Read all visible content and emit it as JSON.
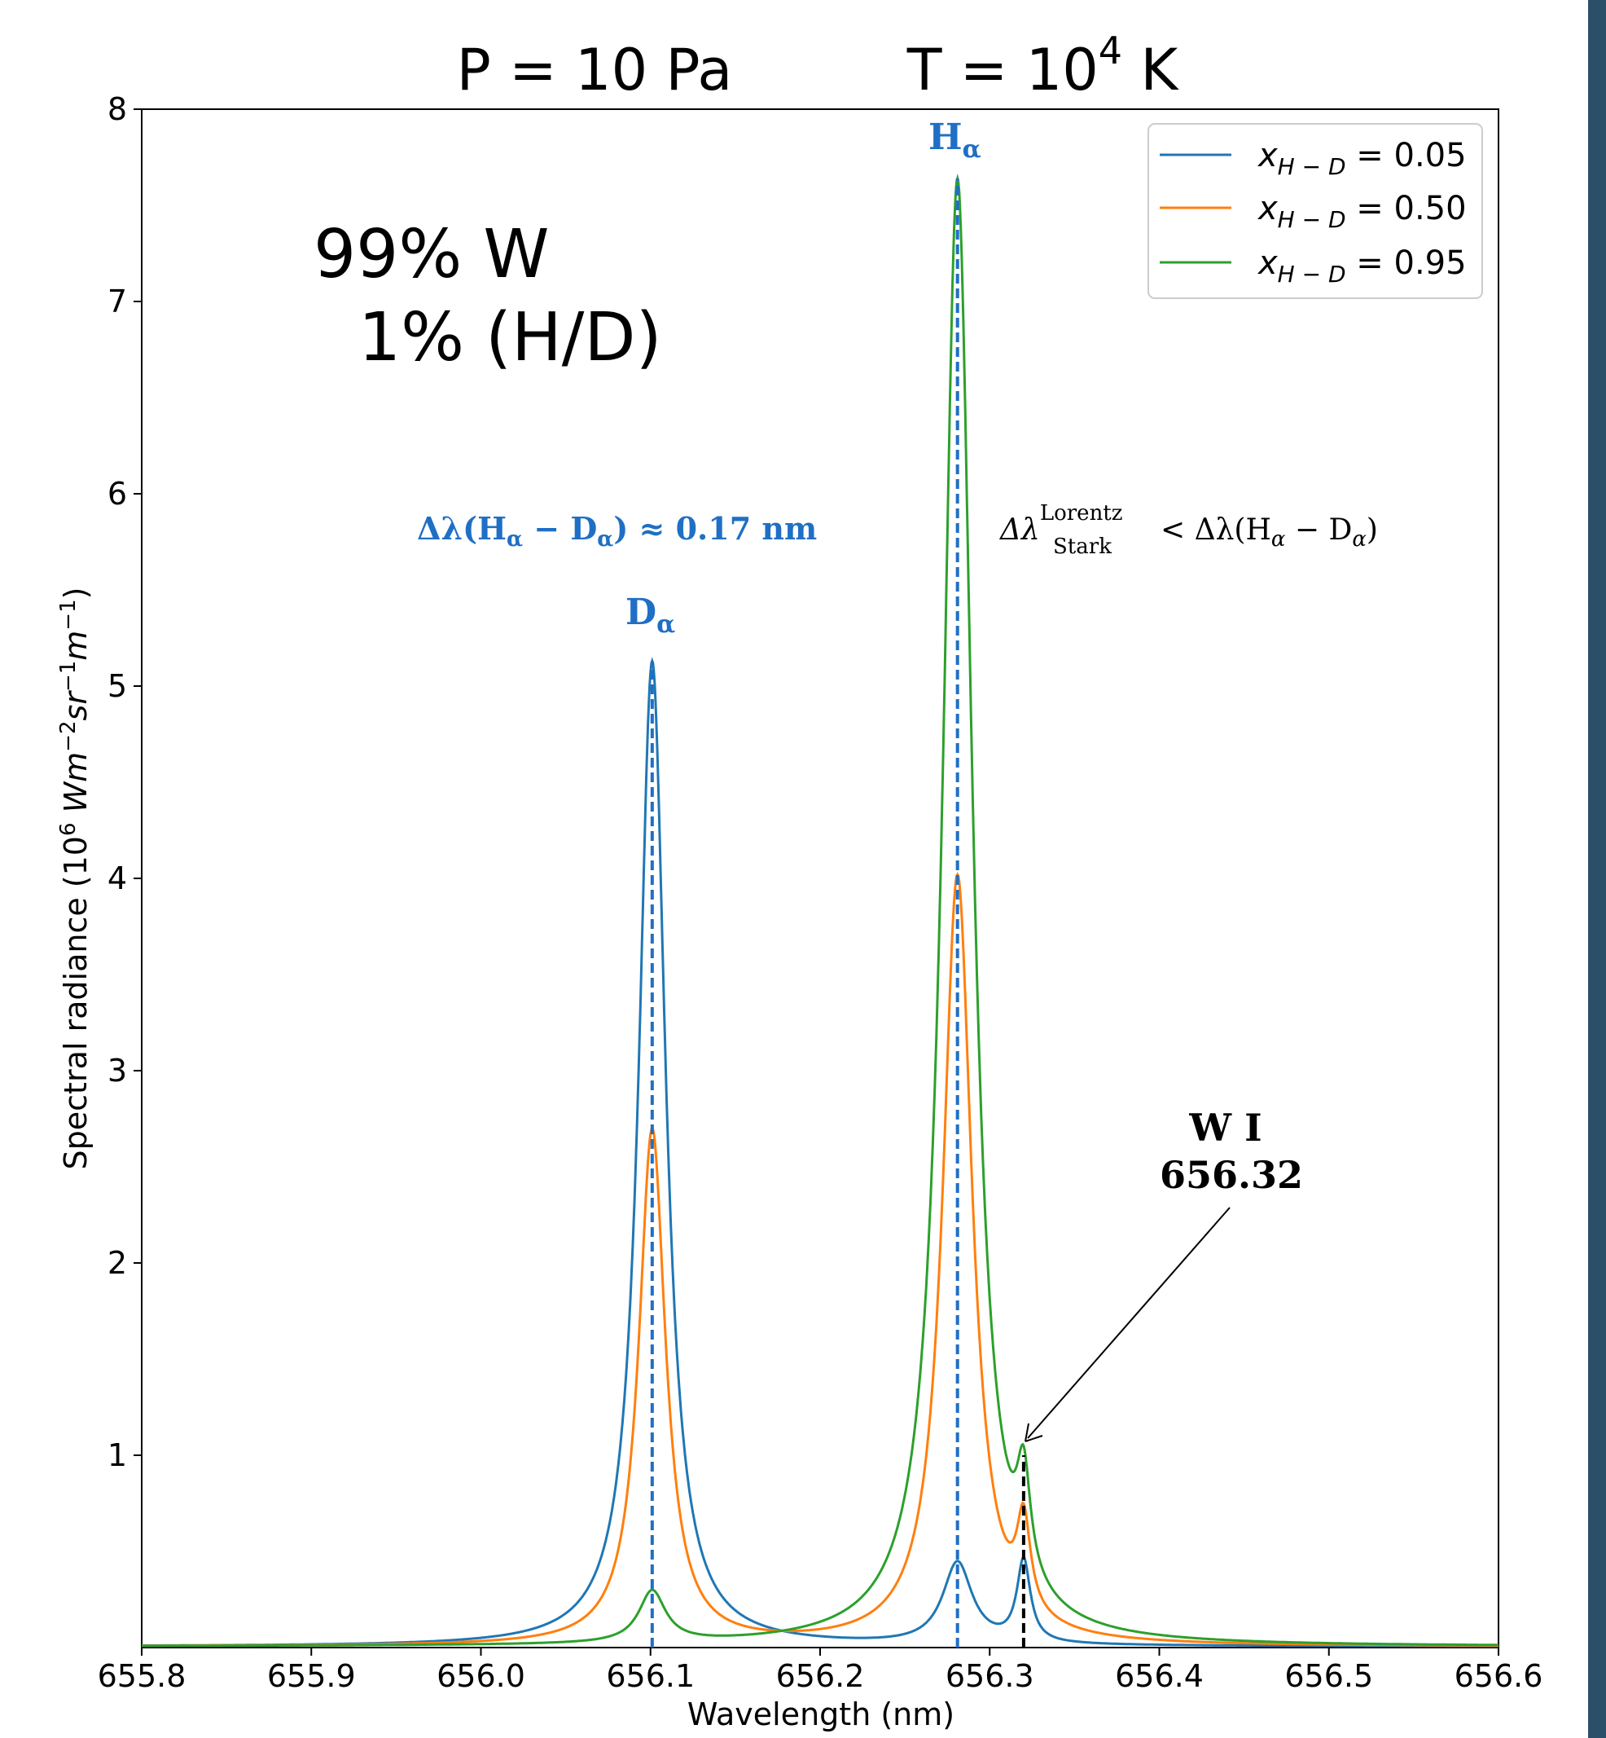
{
  "chart_data": {
    "type": "line",
    "title": {
      "pressure": "P = 10 Pa",
      "temperature_prefix": "T = 10",
      "temperature_exp": "4",
      "temperature_suffix": " K"
    },
    "xlabel": "Wavelength (nm)",
    "ylabel": {
      "prefix": "Spectral radiance (10",
      "exp6": "6",
      "w": " Wm",
      "exp2": "−2",
      "sr": "sr",
      "exp1a": "−1",
      "m": "m",
      "exp1b": "−1",
      "suffix": ")"
    },
    "xlim": [
      655.8,
      656.6
    ],
    "ylim": [
      0,
      8
    ],
    "xticks": [
      "655.8",
      "655.9",
      "656.0",
      "656.1",
      "656.2",
      "656.3",
      "656.4",
      "656.5",
      "656.6"
    ],
    "yticks": [
      "1",
      "2",
      "3",
      "4",
      "5",
      "6",
      "7",
      "8"
    ],
    "grid": false,
    "legend_position": "top-right",
    "series": [
      {
        "name": "x_{H−D} = 0.05",
        "label_var": "x",
        "label_sub": "H − D",
        "label_val": " = 0.05",
        "color": "#1f77b4",
        "peaks": [
          {
            "x": 656.101,
            "y": 5.13
          },
          {
            "x": 656.281,
            "y": 0.45
          },
          {
            "x": 656.32,
            "y": 0.47
          }
        ]
      },
      {
        "name": "x_{H−D} = 0.50",
        "label_var": "x",
        "label_sub": "H − D",
        "label_val": " = 0.50",
        "color": "#ff7f0e",
        "peaks": [
          {
            "x": 656.101,
            "y": 2.7
          },
          {
            "x": 656.281,
            "y": 4.02
          },
          {
            "x": 656.32,
            "y": 0.75
          }
        ]
      },
      {
        "name": "x_{H−D} = 0.95",
        "label_var": "x",
        "label_sub": "H − D",
        "label_val": " = 0.95",
        "color": "#2ca02c",
        "peaks": [
          {
            "x": 656.101,
            "y": 0.3
          },
          {
            "x": 656.281,
            "y": 7.64
          },
          {
            "x": 656.32,
            "y": 1.05
          }
        ]
      }
    ],
    "vlines": [
      {
        "x": 656.101,
        "y_max": 5.13,
        "color": "#1f6fc5",
        "style": "dashed"
      },
      {
        "x": 656.281,
        "y_max": 7.64,
        "color": "#1f6fc5",
        "style": "dashed"
      },
      {
        "x": 656.32,
        "y_max": 1.0,
        "color": "#000000",
        "style": "dashed"
      }
    ],
    "annotations": {
      "composition_line1": "99% W",
      "composition_line2": "1% (H/D)",
      "h_alpha": "H",
      "h_alpha_sub": "α",
      "d_alpha": "D",
      "d_alpha_sub": "α",
      "delta_text": "Δλ(H",
      "delta_text_sub1": "α",
      "delta_text_mid": " − D",
      "delta_text_sub2": "α",
      "delta_text_end": ")  ≈  0.17 nm",
      "stark_lhs": "Δλ",
      "stark_sup": "Lorentz",
      "stark_sub": "Stark",
      "stark_rhs": "  <   Δλ(H",
      "stark_rhs_sub1": "α",
      "stark_rhs_mid": " − D",
      "stark_rhs_sub2": "α",
      "stark_rhs_end": ")",
      "wi_line1": "W I",
      "wi_line2": "656.32"
    }
  }
}
